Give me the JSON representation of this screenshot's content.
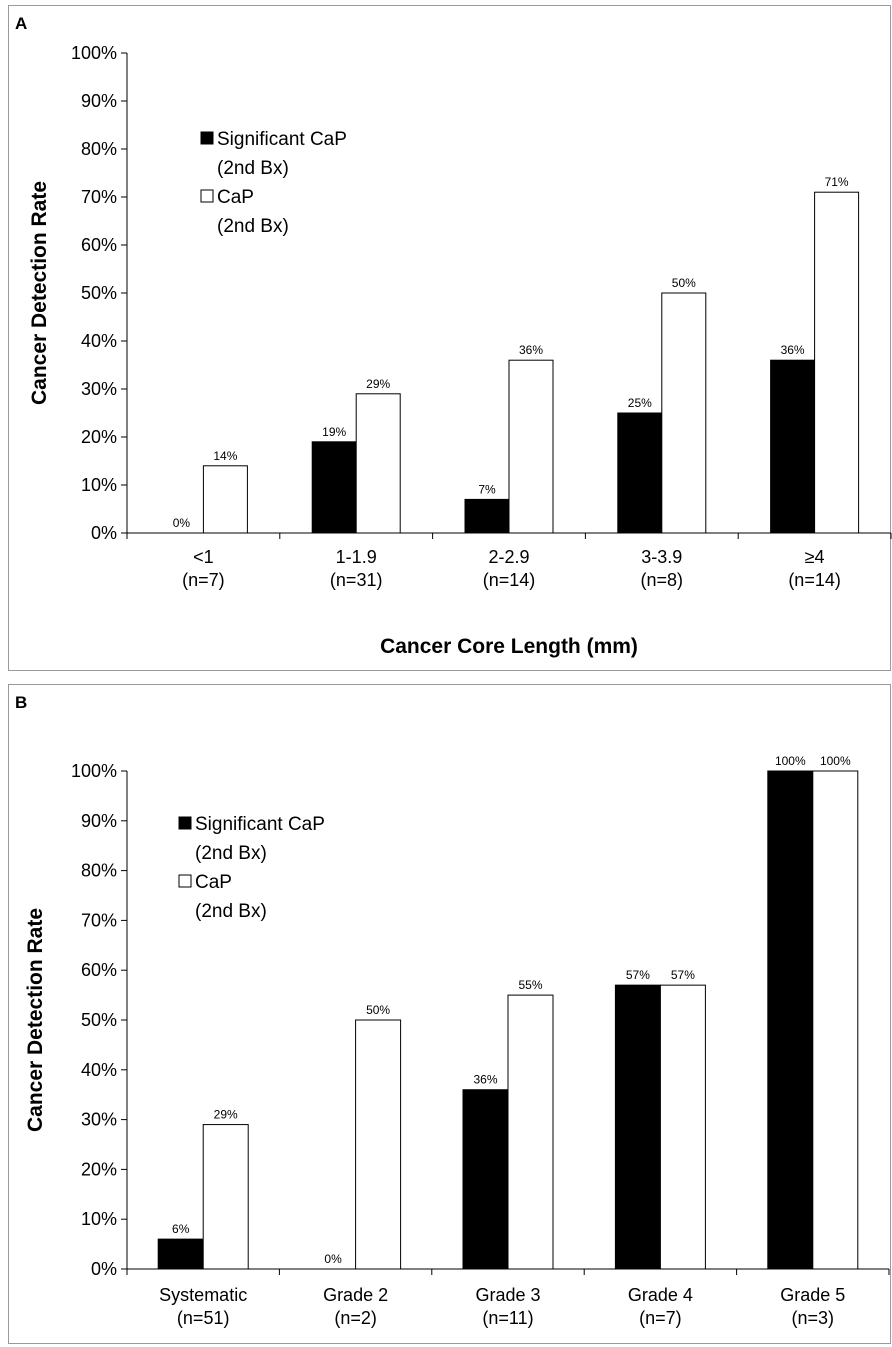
{
  "chart_data": [
    {
      "panel": "A",
      "type": "bar",
      "categories": [
        "<1\n(n=7)",
        "1-1.9\n(n=31)",
        "2-2.9\n(n=14)",
        "3-3.9\n(n=8)",
        "≥4\n(n=14)"
      ],
      "series": [
        {
          "name": "Significant CaP\n(2nd Bx)",
          "color": "#000000",
          "values": [
            0,
            19,
            7,
            25,
            36
          ],
          "labels": [
            "0%",
            "19%",
            "7%",
            "25%",
            "36%"
          ]
        },
        {
          "name": "CaP\n(2nd Bx)",
          "color": "#ffffff",
          "values": [
            14,
            29,
            36,
            50,
            71
          ],
          "labels": [
            "14%",
            "29%",
            "36%",
            "50%",
            "71%"
          ]
        }
      ],
      "xlabel": "Cancer Core Length (mm)",
      "ylabel": "Cancer Detection Rate",
      "ylim": [
        0,
        100
      ],
      "yticks": [
        "0%",
        "10%",
        "20%",
        "30%",
        "40%",
        "50%",
        "60%",
        "70%",
        "80%",
        "90%",
        "100%"
      ],
      "grid": false,
      "legend": "top-left"
    },
    {
      "panel": "B",
      "type": "bar",
      "categories": [
        "Systematic\n(n=51)",
        "Grade 2\n(n=2)",
        "Grade 3\n(n=11)",
        "Grade 4\n(n=7)",
        "Grade 5\n(n=3)"
      ],
      "series": [
        {
          "name": "Significant CaP\n(2nd Bx)",
          "color": "#000000",
          "values": [
            6,
            0,
            36,
            57,
            100
          ],
          "labels": [
            "6%",
            "0%",
            "36%",
            "57%",
            "100%"
          ]
        },
        {
          "name": "CaP\n(2nd Bx)",
          "color": "#ffffff",
          "values": [
            29,
            50,
            55,
            57,
            100
          ],
          "labels": [
            "29%",
            "50%",
            "55%",
            "57%",
            "100%"
          ]
        }
      ],
      "xlabel": "",
      "ylabel": "Cancer Detection Rate",
      "ylim": [
        0,
        100
      ],
      "yticks": [
        "0%",
        "10%",
        "20%",
        "30%",
        "40%",
        "50%",
        "60%",
        "70%",
        "80%",
        "90%",
        "100%"
      ],
      "grid": false,
      "legend": "top-left"
    }
  ]
}
